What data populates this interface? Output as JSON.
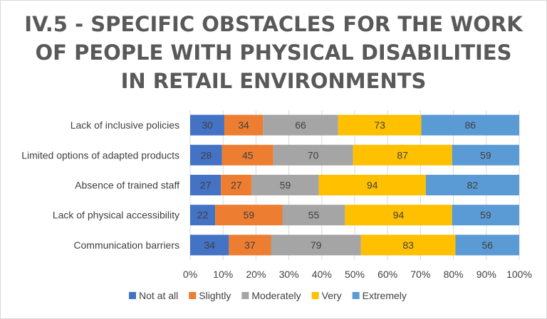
{
  "chart_data": {
    "type": "bar",
    "stacked": "percent",
    "orientation": "horizontal",
    "title": "IV.5 - SPECIFIC OBSTACLES FOR THE WORK OF PEOPLE WITH PHYSICAL DISABILITIES IN RETAIL ENVIRONMENTS",
    "title_lines": [
      "IV.5 - SPECIFIC OBSTACLES FOR THE WORK",
      "OF PEOPLE WITH PHYSICAL DISABILITIES",
      "IN RETAIL ENVIRONMENTS"
    ],
    "categories": [
      "Lack of inclusive policies",
      "Limited options of adapted products",
      "Absence of trained staff",
      "Lack of physical accessibility",
      "Communication barriers"
    ],
    "series": [
      {
        "name": "Not at all",
        "color": "#4472c4",
        "values": [
          30,
          28,
          27,
          22,
          34
        ]
      },
      {
        "name": "Slightly",
        "color": "#ed7d31",
        "values": [
          34,
          45,
          27,
          59,
          37
        ]
      },
      {
        "name": "Moderately",
        "color": "#a5a5a5",
        "values": [
          66,
          70,
          59,
          55,
          79
        ]
      },
      {
        "name": "Very",
        "color": "#ffc000",
        "values": [
          73,
          87,
          94,
          94,
          83
        ]
      },
      {
        "name": "Extremely",
        "color": "#5b9bd5",
        "values": [
          86,
          59,
          82,
          59,
          56
        ]
      }
    ],
    "x_ticks": [
      "0%",
      "10%",
      "20%",
      "30%",
      "40%",
      "50%",
      "60%",
      "70%",
      "80%",
      "90%",
      "100%"
    ],
    "xlim": [
      0,
      100
    ],
    "grid": true,
    "legend_position": "bottom"
  }
}
